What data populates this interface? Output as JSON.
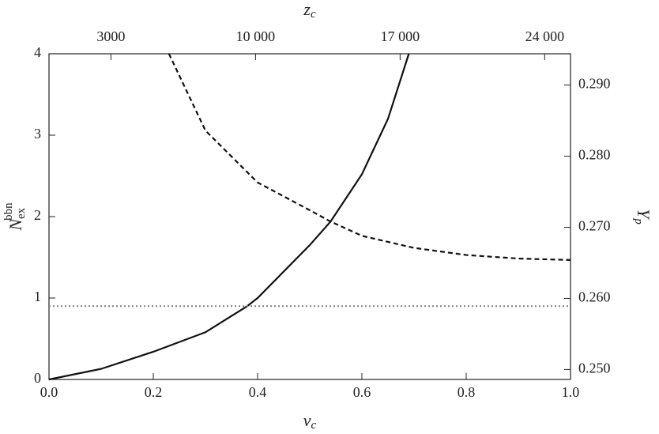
{
  "chart_data": {
    "type": "line",
    "x_label": {
      "main": "v",
      "sub": "c"
    },
    "x2_label": {
      "main": "z",
      "sub": "c"
    },
    "y_label": {
      "main": "N",
      "sub": "ex",
      "sup": "bbn"
    },
    "y2_label": {
      "main": "Y",
      "sub": "p"
    },
    "xlim": [
      0,
      1
    ],
    "xticks": [
      {
        "value": 0,
        "label": "0.0"
      },
      {
        "value": 0.2,
        "label": "0.2"
      },
      {
        "value": 0.4,
        "label": "0.4"
      },
      {
        "value": 0.6,
        "label": "0.6"
      },
      {
        "value": 0.8,
        "label": "0.8"
      },
      {
        "value": 1,
        "label": "1.0"
      }
    ],
    "x2lim": [
      0,
      25250
    ],
    "x2ticks": [
      3000,
      {
        "value": 10000,
        "label": "10 000"
      },
      {
        "value": 17000,
        "label": "17 000"
      },
      {
        "value": 24000,
        "label": "24 000"
      }
    ],
    "ylim": [
      0,
      4
    ],
    "yticks": [
      0,
      1,
      2,
      3,
      4
    ],
    "y2lim": [
      0.2486,
      0.2944
    ],
    "y2ticks": [
      {
        "value": 0.25,
        "label": "0.250"
      },
      {
        "value": 0.26,
        "label": "0.260"
      },
      {
        "value": 0.27,
        "label": "0.270"
      },
      {
        "value": 0.28,
        "label": "0.280"
      },
      {
        "value": 0.29,
        "label": "0.290"
      }
    ],
    "series": [
      {
        "color": "#111111",
        "style": "solid",
        "x": [
          0,
          0.1,
          0.2,
          0.3,
          0.38,
          0.4,
          0.5,
          0.54,
          0.6,
          0.65,
          0.69
        ],
        "values": [
          0,
          0.13,
          0.34,
          0.58,
          0.9,
          1.0,
          1.65,
          1.94,
          2.52,
          3.2,
          4.0
        ]
      },
      {
        "color": "#111111",
        "style": "dashed",
        "axis": "y2",
        "x": [
          0.23,
          0.3,
          0.4,
          0.5,
          0.54,
          0.6,
          0.7,
          0.8,
          0.9,
          1.0
        ],
        "values": [
          0.2944,
          0.2836,
          0.2763,
          0.2724,
          0.2708,
          0.2688,
          0.2671,
          0.2661,
          0.2656,
          0.2654
        ]
      },
      {
        "color": "#808080",
        "style": "dotted",
        "x": [
          0,
          1
        ],
        "values": [
          0.9,
          0.9
        ]
      }
    ]
  }
}
